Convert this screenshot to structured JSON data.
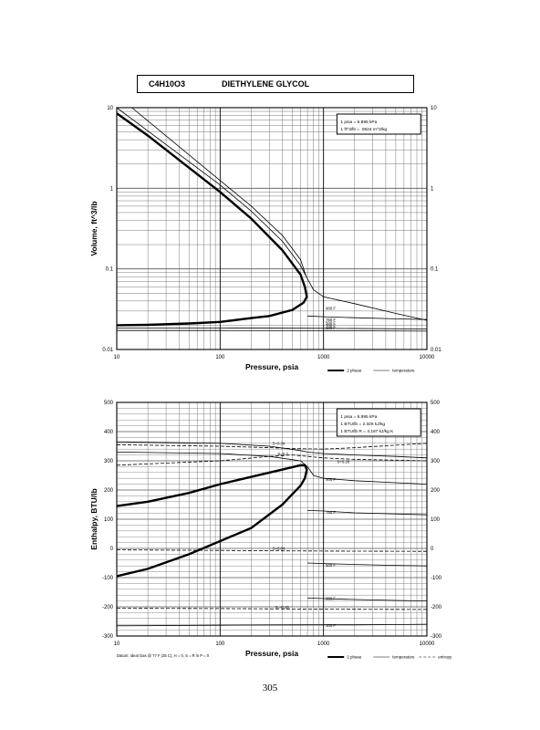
{
  "header": {
    "formula": "C4H10O3",
    "compound": "DIETHYLENE GLYCOL"
  },
  "page_number": "305",
  "chart_data": [
    {
      "type": "line",
      "ylabel": "Volume, ft^3/lb",
      "xlabel": "Pressure,  psia",
      "xscale": "log",
      "yscale": "log",
      "xlim": [
        10,
        10000
      ],
      "ylim": [
        0.01,
        10
      ],
      "x_ticks": [
        "10",
        "100",
        "1000",
        "10000"
      ],
      "y_ticks": [
        "0.01",
        "0.1",
        "1",
        "10"
      ],
      "grid": true,
      "info_box": [
        "1 psia  =  6.895 kPa",
        "1 ft^3/lb  =  .0624 m^3/kg"
      ],
      "legend": [
        "2 phase",
        "temperature"
      ],
      "legend_position": "bottom-right",
      "isotherm_labels": [
        "900 F",
        "750 F",
        "500 F",
        "300 F",
        "100 F"
      ],
      "series": [
        {
          "name": "2 phase",
          "style": "bold",
          "x": [
            10,
            20,
            50,
            100,
            200,
            400,
            600,
            660,
            690,
            640,
            500,
            300,
            200,
            100,
            50,
            20,
            10
          ],
          "y": [
            8.5,
            4.5,
            1.8,
            0.9,
            0.42,
            0.17,
            0.085,
            0.06,
            0.045,
            0.038,
            0.031,
            0.026,
            0.0245,
            0.022,
            0.021,
            0.0202,
            0.02
          ]
        },
        {
          "style": "thin",
          "x": [
            10,
            100,
            200,
            400,
            600,
            700,
            800,
            1000,
            2000,
            5000,
            10000
          ],
          "y": [
            10,
            1.1,
            0.52,
            0.22,
            0.11,
            0.075,
            0.055,
            0.045,
            0.037,
            0.028,
            0.023
          ]
        },
        {
          "style": "thin",
          "x": [
            14,
            100,
            200,
            400,
            600,
            680
          ],
          "y": [
            10,
            1.25,
            0.6,
            0.26,
            0.13,
            0.08
          ]
        },
        {
          "style": "thin",
          "x": [
            10,
            100,
            1000,
            10000
          ],
          "y": [
            0.0185,
            0.0185,
            0.0183,
            0.018
          ]
        },
        {
          "style": "thin",
          "x": [
            10,
            100,
            1000,
            10000
          ],
          "y": [
            0.0172,
            0.0172,
            0.0171,
            0.0169
          ]
        },
        {
          "style": "thin",
          "x": [
            700,
            1000,
            2000,
            5000,
            10000
          ],
          "y": [
            0.026,
            0.0255,
            0.0248,
            0.024,
            0.0235
          ]
        }
      ]
    },
    {
      "type": "line",
      "ylabel": "Enthalpy, BTU/lb",
      "xlabel": "Pressure,  psia",
      "xscale": "log",
      "xlim": [
        10,
        10000
      ],
      "ylim": [
        -300,
        500
      ],
      "x_ticks": [
        "10",
        "100",
        "1000",
        "10000"
      ],
      "y_ticks": [
        "500",
        "400",
        "300",
        "200",
        "100",
        "0",
        "-100",
        "-200",
        "-300"
      ],
      "grid": true,
      "info_box": [
        "1 psia  =  6.895 kPa",
        "1 BTU/lb  =  2.326 kJ/kg",
        "1 BTU/lb R  =  4.187 kJ/kg K"
      ],
      "legend": [
        "2 phase",
        "temperature",
        "entropy"
      ],
      "legend_position": "bottom-right",
      "footnote": "Datum: Ideal Gas @ 77 F (25 C),  H = 0,  S = R ln P = 0",
      "isotherm_labels": [
        "900 F",
        "750 F",
        "500 F",
        "300 F",
        "100 F"
      ],
      "entropy_labels": [
        "S=0.34",
        "S=0.3",
        "S=0.26",
        "S=0.04",
        "S=-0.16"
      ],
      "series": [
        {
          "name": "2 phase",
          "style": "bold",
          "x": [
            10,
            20,
            50,
            100,
            200,
            400,
            600,
            660,
            690,
            660,
            600,
            400,
            200,
            100,
            50,
            20,
            10
          ],
          "y": [
            145,
            160,
            190,
            220,
            245,
            270,
            285,
            285,
            270,
            240,
            215,
            150,
            70,
            25,
            -20,
            -70,
            -95
          ]
        },
        {
          "style": "thin",
          "x": [
            10,
            100,
            300,
            600,
            700,
            800,
            1000,
            2000,
            5000,
            10000
          ],
          "y": [
            330,
            325,
            315,
            300,
            280,
            250,
            240,
            232,
            225,
            220
          ]
        },
        {
          "style": "thin",
          "x": [
            10,
            100,
            300,
            600,
            700,
            1000,
            2000,
            5000,
            10000
          ],
          "y": [
            365,
            360,
            350,
            335,
            330,
            325,
            320,
            315,
            310
          ]
        },
        {
          "style": "thin",
          "x": [
            700,
            1000,
            2000,
            5000,
            10000
          ],
          "y": [
            130,
            128,
            122,
            118,
            115
          ]
        },
        {
          "style": "thin",
          "x": [
            700,
            1000,
            2000,
            5000,
            10000
          ],
          "y": [
            -50,
            -52,
            -55,
            -58,
            -60
          ]
        },
        {
          "style": "thin",
          "x": [
            700,
            1000,
            2000,
            5000,
            10000
          ],
          "y": [
            -170,
            -172,
            -175,
            -178,
            -180
          ]
        },
        {
          "style": "thin",
          "x": [
            10,
            100,
            1000,
            2000,
            5000,
            10000
          ],
          "y": [
            -265,
            -263,
            -262,
            -262,
            -261,
            -260
          ]
        },
        {
          "style": "dashed",
          "x": [
            10,
            100,
            300,
            500,
            1000,
            2000,
            10000
          ],
          "y": [
            355,
            350,
            345,
            342,
            340,
            345,
            360
          ]
        },
        {
          "style": "dashed",
          "x": [
            10,
            100,
            300,
            500,
            1000,
            2000,
            10000
          ],
          "y": [
            285,
            300,
            315,
            320,
            310,
            305,
            300
          ]
        },
        {
          "style": "dashed",
          "x": [
            10,
            100,
            300,
            1000,
            10000
          ],
          "y": [
            -5,
            -7,
            -8,
            -9,
            -10
          ]
        },
        {
          "style": "dashed",
          "x": [
            10,
            100,
            300,
            1000,
            10000
          ],
          "y": [
            -205,
            -206,
            -207,
            -208,
            -209
          ]
        }
      ]
    }
  ]
}
